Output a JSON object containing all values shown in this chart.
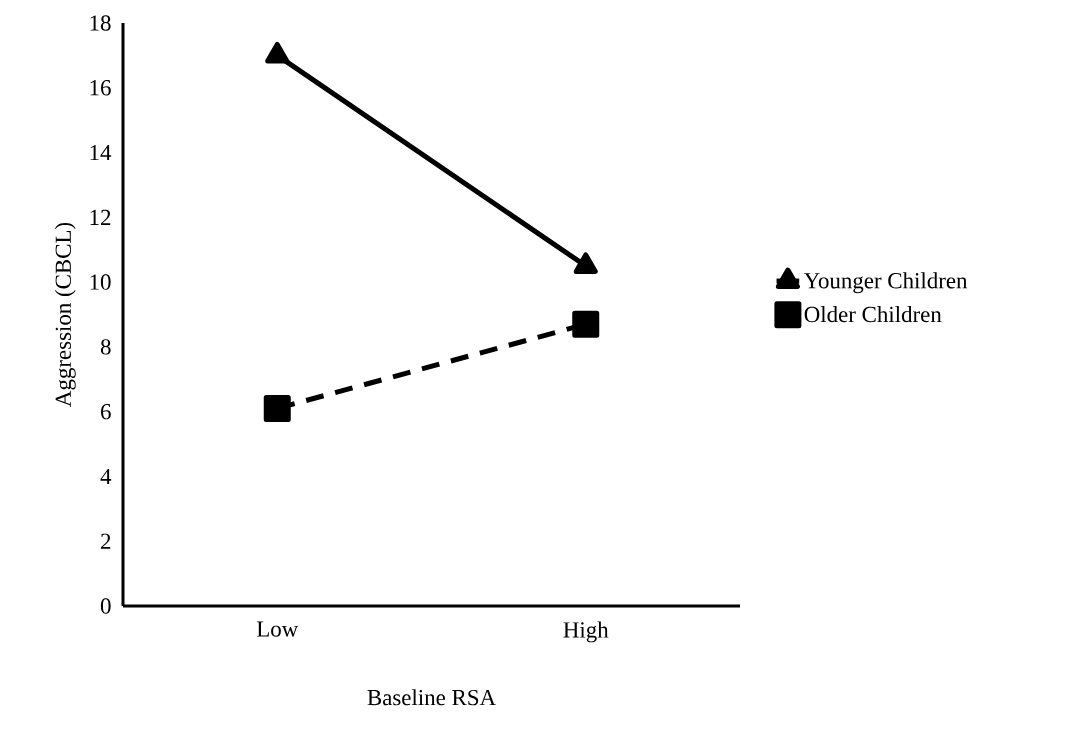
{
  "chart_data": {
    "type": "line",
    "xlabel": "Baseline RSA",
    "ylabel": "Aggression (CBCL)",
    "categories": [
      "Low",
      "High"
    ],
    "series": [
      {
        "name": "Younger Children",
        "color": "#000000",
        "values": [
          17.0,
          10.5
        ],
        "marker": "triangle",
        "line_style": "solid"
      },
      {
        "name": "Older Children",
        "color": "#000000",
        "values": [
          6.1,
          8.7
        ],
        "marker": "square",
        "line_style": "dashed"
      }
    ],
    "ylim": [
      0,
      18
    ],
    "yticks": [
      0,
      2,
      4,
      6,
      8,
      10,
      12,
      14,
      16,
      18
    ],
    "legend": "right",
    "grid": false
  }
}
